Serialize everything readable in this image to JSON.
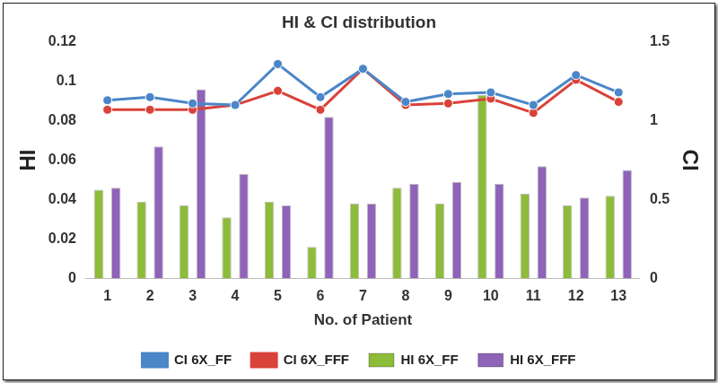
{
  "chart_data": {
    "type": "bar",
    "title": "HI & CI distribution",
    "x_label": "No. of Patient",
    "y_label": "HI",
    "y2_label": "CI",
    "categories": [
      "1",
      "2",
      "3",
      "4",
      "5",
      "6",
      "7",
      "8",
      "9",
      "10",
      "11",
      "12",
      "13"
    ],
    "series": [
      {
        "name": "HI 6X_FF",
        "type": "bar",
        "color": "#8dbb3a",
        "values": [
          0.045,
          0.039,
          0.037,
          0.031,
          0.039,
          0.016,
          0.038,
          0.046,
          0.038,
          0.093,
          0.043,
          0.037,
          0.042
        ]
      },
      {
        "name": "HI 6X_FFF",
        "type": "bar",
        "color": "#8e63b8",
        "values": [
          0.046,
          0.067,
          0.096,
          0.053,
          0.037,
          0.082,
          0.038,
          0.048,
          0.049,
          0.048,
          0.057,
          0.041,
          0.055
        ]
      },
      {
        "name": "CI 6X_FF",
        "type": "line",
        "axis": "y2",
        "marker": "circle",
        "color": "#4a86c8",
        "values": [
          1.13,
          1.15,
          1.11,
          1.1,
          1.36,
          1.15,
          1.33,
          1.12,
          1.17,
          1.18,
          1.1,
          1.29,
          1.18
        ]
      },
      {
        "name": "CI 6X_FFF",
        "type": "line",
        "axis": "y2",
        "marker": "circle",
        "color": "#d9423a",
        "values": [
          1.07,
          1.07,
          1.07,
          1.1,
          1.19,
          1.07,
          1.33,
          1.1,
          1.11,
          1.14,
          1.05,
          1.26,
          1.12
        ]
      }
    ],
    "ylim": [
      0,
      0.12
    ],
    "yticks": [
      0,
      0.02,
      0.04,
      0.06,
      0.08,
      0.1,
      0.12
    ],
    "y2lim": [
      0,
      1.5
    ],
    "y2ticks": [
      0,
      0.5,
      1,
      1.5
    ],
    "grid": false,
    "legend": "bottom"
  }
}
